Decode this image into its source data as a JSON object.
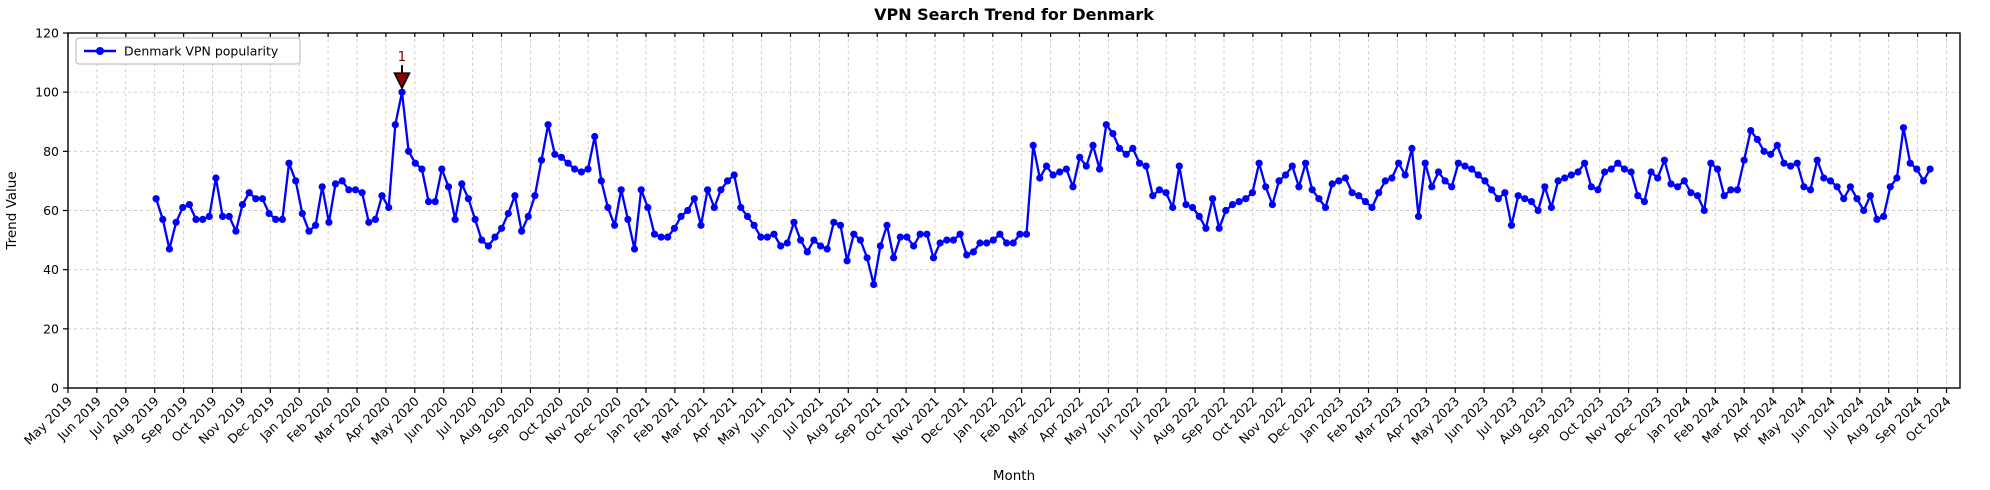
{
  "chart_data": {
    "type": "line",
    "title": "VPN Search Trend for Denmark",
    "xlabel": "Month",
    "ylabel": "Trend Value",
    "ylim": [
      0,
      120
    ],
    "yticks": [
      0,
      20,
      40,
      60,
      80,
      100,
      120
    ],
    "grid": true,
    "legend_position": "upper-left",
    "x_tick_labels": [
      "May 2019",
      "Jun 2019",
      "Jul 2019",
      "Aug 2019",
      "Sep 2019",
      "Oct 2019",
      "Nov 2019",
      "Dec 2019",
      "Jan 2020",
      "Feb 2020",
      "Mar 2020",
      "Apr 2020",
      "May 2020",
      "Jun 2020",
      "Jul 2020",
      "Aug 2020",
      "Sep 2020",
      "Oct 2020",
      "Nov 2020",
      "Dec 2020",
      "Jan 2021",
      "Feb 2021",
      "Mar 2021",
      "Apr 2021",
      "May 2021",
      "Jun 2021",
      "Jul 2021",
      "Aug 2021",
      "Sep 2021",
      "Oct 2021",
      "Nov 2021",
      "Dec 2021",
      "Jan 2022",
      "Feb 2022",
      "Mar 2022",
      "Apr 2022",
      "May 2022",
      "Jun 2022",
      "Jul 2022",
      "Aug 2022",
      "Sep 2022",
      "Oct 2022",
      "Nov 2022",
      "Dec 2022",
      "Jan 2023",
      "Feb 2023",
      "Mar 2023",
      "Apr 2023",
      "May 2023",
      "Jun 2023",
      "Jul 2023",
      "Aug 2023",
      "Sep 2023",
      "Oct 2023",
      "Nov 2023",
      "Dec 2023",
      "Jan 2024",
      "Feb 2024",
      "Mar 2024",
      "Apr 2024",
      "May 2024",
      "Jun 2024",
      "Jul 2024",
      "Aug 2024",
      "Sep 2024",
      "Oct 2024"
    ],
    "series": [
      {
        "name": "Denmark VPN popularity",
        "color": "#0000ff",
        "start_month_index": 3.05,
        "month_step_per_point": 0.2299,
        "values": [
          64,
          57,
          47,
          56,
          61,
          62,
          57,
          57,
          58,
          71,
          58,
          58,
          53,
          62,
          66,
          64,
          64,
          59,
          57,
          57,
          76,
          70,
          59,
          53,
          55,
          68,
          56,
          69,
          70,
          67,
          67,
          66,
          56,
          57,
          65,
          61,
          89,
          100,
          80,
          76,
          74,
          63,
          63,
          74,
          68,
          57,
          69,
          64,
          57,
          50,
          48,
          51,
          54,
          59,
          65,
          53,
          58,
          65,
          77,
          89,
          79,
          78,
          76,
          74,
          73,
          74,
          85,
          70,
          61,
          55,
          67,
          57,
          47,
          67,
          61,
          52,
          51,
          51,
          54,
          58,
          60,
          64,
          55,
          67,
          61,
          67,
          70,
          72,
          61,
          58,
          55,
          51,
          51,
          52,
          48,
          49,
          56,
          50,
          46,
          50,
          48,
          47,
          56,
          55,
          43,
          52,
          50,
          44,
          35,
          48,
          55,
          44,
          51,
          51,
          48,
          52,
          52,
          44,
          49,
          50,
          50,
          52,
          45,
          46,
          49,
          49,
          50,
          52,
          49,
          49,
          52,
          52,
          82,
          71,
          75,
          72,
          73,
          74,
          68,
          78,
          75,
          82,
          74,
          89,
          86,
          81,
          79,
          81,
          76,
          75,
          65,
          67,
          66,
          61,
          75,
          62,
          61,
          58,
          54,
          64,
          54,
          60,
          62,
          63,
          64,
          66,
          76,
          68,
          62,
          70,
          72,
          75,
          68,
          76,
          67,
          64,
          61,
          69,
          70,
          71,
          66,
          65,
          63,
          61,
          66,
          70,
          71,
          76,
          72,
          81,
          58,
          76,
          68,
          73,
          70,
          68,
          76,
          75,
          74,
          72,
          70,
          67,
          64,
          66,
          55,
          65,
          64,
          63,
          60,
          68,
          61,
          70,
          71,
          72,
          73,
          76,
          68,
          67,
          73,
          74,
          76,
          74,
          73,
          65,
          63,
          73,
          71,
          77,
          69,
          68,
          70,
          66,
          65,
          60,
          76,
          74,
          65,
          67,
          67,
          77,
          87,
          84,
          80,
          79,
          82,
          76,
          75,
          76,
          68,
          67,
          77,
          71,
          70,
          68,
          64,
          68,
          64,
          60,
          65,
          57,
          58,
          68,
          71,
          88,
          76,
          74,
          70,
          74
        ]
      }
    ],
    "annotation": {
      "label": "1",
      "at_value": 100,
      "marker": "triangle-down",
      "color": "#8b0000",
      "edge_color": "#000000"
    },
    "legend": {
      "entries": [
        "Denmark VPN popularity"
      ]
    },
    "colors": {
      "line": "#0000ff",
      "grid": "#c9c9c9",
      "axis": "#000000",
      "background": "#ffffff",
      "annotation": "#8b0000"
    }
  }
}
